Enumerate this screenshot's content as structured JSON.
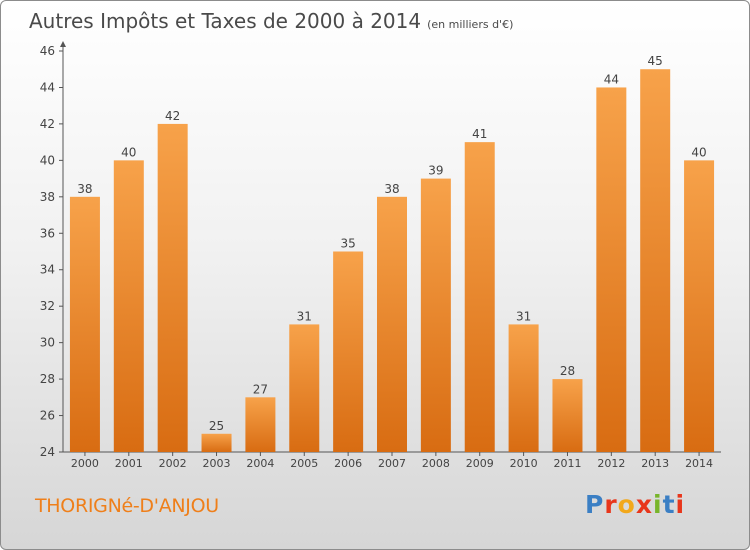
{
  "header": {
    "title": "Autres Impôts et Taxes de 2000 à 2014",
    "unit": "(en milliers d'€)"
  },
  "footer": {
    "location": "THORIGNé-D'ANJOU",
    "brand": "Proxiti"
  },
  "colors": {
    "bar_light": "#f7a24a",
    "bar_dark": "#d86c12",
    "axis": "#555555",
    "location_text": "#ef7f1a",
    "brand_letters": [
      "#3b7fc4",
      "#e8361b",
      "#f2a81b",
      "#e8361b",
      "#78b52b",
      "#3b7fc4",
      "#e8361b"
    ]
  },
  "chart_data": {
    "type": "bar",
    "title": "Autres Impôts et Taxes de 2000 à 2014",
    "subtitle": "(en milliers d'€)",
    "xlabel": "",
    "ylabel": "",
    "categories": [
      "2000",
      "2001",
      "2002",
      "2003",
      "2004",
      "2005",
      "2006",
      "2007",
      "2008",
      "2009",
      "2010",
      "2011",
      "2012",
      "2013",
      "2014"
    ],
    "values": [
      38,
      40,
      42,
      25,
      27,
      31,
      35,
      38,
      39,
      41,
      31,
      28,
      44,
      45,
      40
    ],
    "ylim": [
      24,
      46
    ],
    "yticks": [
      24,
      26,
      28,
      30,
      32,
      34,
      36,
      38,
      40,
      42,
      44,
      46
    ],
    "grid": false,
    "legend": "none"
  }
}
